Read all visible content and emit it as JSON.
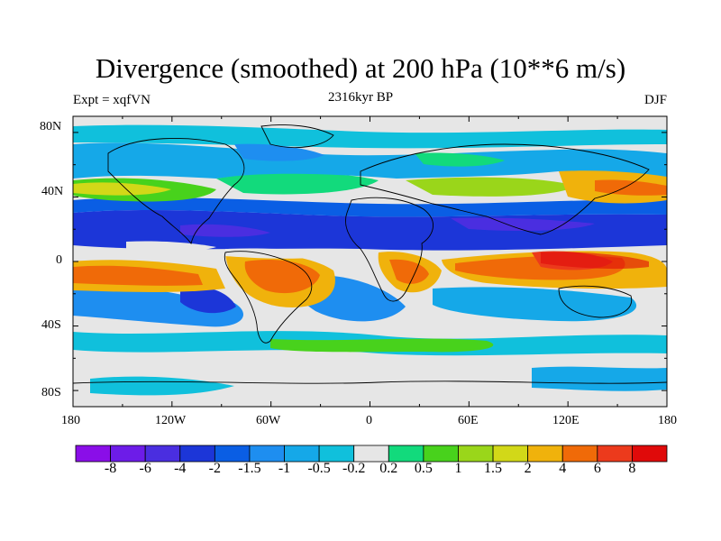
{
  "title": "Divergence (smoothed) at 200 hPa (10**6 m/s)",
  "experiment": "Expt = xqfVN",
  "period": "2316kyr BP",
  "season": "DJF",
  "lat_labels": [
    "80N",
    "40N",
    "0",
    "40S",
    "80S"
  ],
  "lon_labels": [
    "180",
    "120W",
    "60W",
    "0",
    "60E",
    "120E",
    "180"
  ],
  "colorbar": {
    "levels": [
      "-8",
      "-6",
      "-4",
      "-2",
      "-1.5",
      "-1",
      "-0.5",
      "-0.2",
      "0.2",
      "0.5",
      "1",
      "1.5",
      "2",
      "4",
      "6",
      "8"
    ],
    "colors": [
      "#8a0ee8",
      "#6d1ce8",
      "#4a2ee0",
      "#1c36d8",
      "#0a5ee4",
      "#1e8ef0",
      "#15a8e8",
      "#10c0dc",
      "#e6e6e6",
      "#12da7c",
      "#48d21c",
      "#9ad61a",
      "#d2d818",
      "#f0b20c",
      "#f06a08",
      "#ec3a1c",
      "#e00a0a"
    ]
  },
  "colors": {
    "land_outline": "#000000",
    "neutral_fill": "#e6e6e6"
  }
}
